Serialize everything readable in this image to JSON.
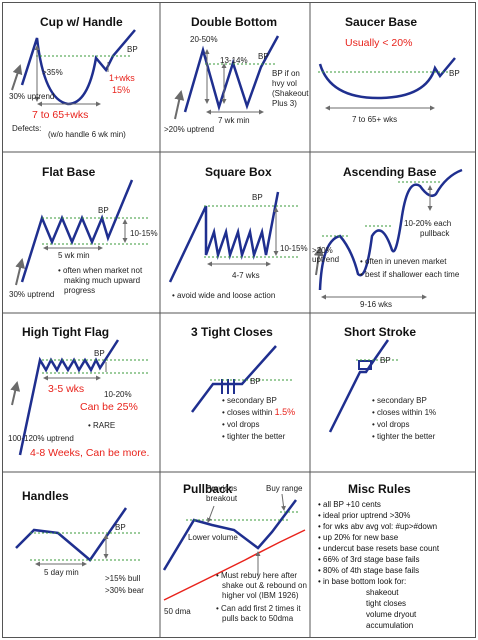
{
  "panels": {
    "cup": {
      "title": "Cup w/ Handle",
      "bp": "BP",
      "pct": ">35%",
      "wks": "1+wks",
      "pct2": "15%",
      "uptrend": "30% uptrend",
      "range": "7 to 65+wks",
      "defects": "Defects:",
      "defects_note": "(w/o handle 6 wk min)"
    },
    "double_bottom": {
      "title": "Double Bottom",
      "range1": "20-50%",
      "range2": "13-14%",
      "bp": "BP",
      "note": "BP if on hvy vol (Shakeout Plus 3)",
      "wk": "7 wk min",
      "uptrend": ">20% uptrend"
    },
    "saucer": {
      "title": "Saucer Base",
      "usually": "Usually < 20%",
      "bp": "BP",
      "wks": "7 to 65+ wks"
    },
    "flat": {
      "title": "Flat Base",
      "bp": "BP",
      "pct": "10-15%",
      "wk": "5 wk min",
      "uptrend": "30% uptrend",
      "bullet": "often when market not making much upward progress"
    },
    "square": {
      "title": "Square Box",
      "bp": "BP",
      "pct": "10-15%",
      "wks": "4-7 wks",
      "bullet": "avoid wide and loose action"
    },
    "ascending": {
      "title": "Ascending Base",
      "pct": "10-20% each pullback",
      "uptrend": ">20% uptrend",
      "b1": "often in uneven market",
      "b2": "best if shallower each time",
      "wks": "9-16 wks"
    },
    "htf": {
      "title": "High Tight Flag",
      "bp": "BP",
      "wks": "3-5 wks",
      "pct": "10-20%",
      "can": "Can be 25%",
      "uptrend": "100-120% uptrend",
      "rare": "RARE",
      "weeks": "4-8 Weeks, Can be more."
    },
    "ttc": {
      "title": "3 Tight Closes",
      "bp": "BP",
      "b1": "secondary BP",
      "b2a": "closes within ",
      "b2b": "1.5%",
      "b3": "vol drops",
      "b4": "tighter the better"
    },
    "short": {
      "title": "Short Stroke",
      "bp": "BP",
      "b1": "secondary BP",
      "b2": "closes within 1%",
      "b3": "vol drops",
      "b4": "tighter the better"
    },
    "handles": {
      "title": "Handles",
      "bp": "BP",
      "wk": "5 day min",
      "bull": ">15% bull",
      "bear": ">30% bear"
    },
    "pullback": {
      "title": "Pullback",
      "prev": "Previous breakout",
      "buy": "Buy range",
      "lower": "Lower volume",
      "dma": "50 dma",
      "b1": "Must rebuy here after shake out & rebound on higher vol (IBM 1926)",
      "b2": "Can add first 2 times it pulls back to 50dma"
    },
    "misc": {
      "title": "Misc Rules",
      "rules": [
        "all BP +10 cents",
        "ideal prior uptrend >30%",
        "for wks abv avg vol: #up>#down",
        "up 20% for new base",
        "undercut base resets base count",
        "66% of 3rd stage base fails",
        "80% of 4th stage base fails",
        "in base bottom look for:"
      ],
      "sub": [
        "shakeout",
        "tight closes",
        "volume dryout",
        "accumulation"
      ]
    }
  },
  "colors": {
    "line": "#1f2f8f",
    "arrow": "#6b6b6b",
    "green": "#3a9a3a",
    "red": "#e8231c",
    "border": "#555555"
  }
}
